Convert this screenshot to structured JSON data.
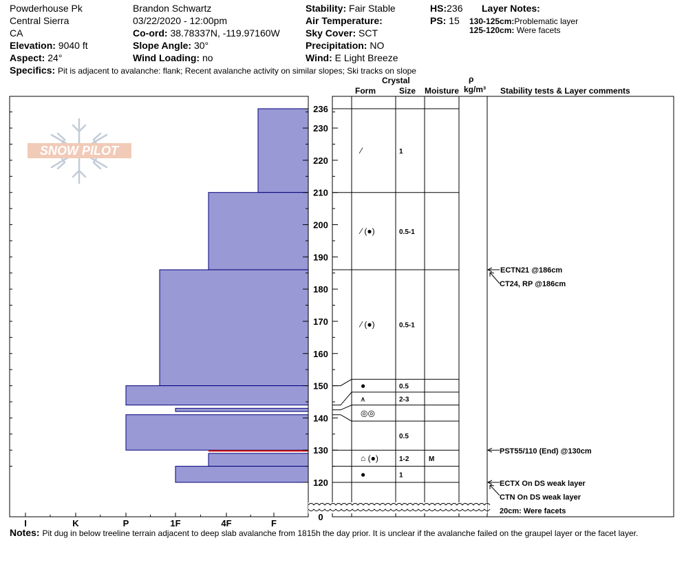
{
  "header": {
    "location": "Powderhouse Pk",
    "range": "Central Sierra",
    "state": "CA",
    "elevation_label": "Elevation:",
    "elevation_value": "9040 ft",
    "aspect_label": "Aspect:",
    "aspect_value": "24°",
    "observer": "Brandon Schwartz",
    "datetime": "03/22/2020 - 12:00pm",
    "coord_label": "Co-ord:",
    "coord_value": "38.78337N, -119.97160W",
    "slope_label": "Slope Angle:",
    "slope_value": "30°",
    "wind_loading_label": "Wind Loading:",
    "wind_loading_value": "no",
    "stability_label": "Stability:",
    "stability_value": "Fair Stable",
    "air_temp_label": "Air Temperature:",
    "air_temp_value": "",
    "sky_label": "Sky Cover:",
    "sky_value": "SCT",
    "precip_label": "Precipitation:",
    "precip_value": "NO",
    "wind_label": "Wind:",
    "wind_value": "E Light Breeze",
    "hs_label": "HS:",
    "hs_value": "236",
    "ps_label": "PS:",
    "ps_value": "15",
    "layer_notes_title": "Layer Notes:",
    "layer_notes": [
      {
        "range": "130-125cm:",
        "text": "Problematic layer"
      },
      {
        "range": "125-120cm:",
        "text": "Were facets"
      }
    ],
    "specifics_label": "Specifics:",
    "specifics_value": "Pit is adjacent to avalanche: flank;  Recent avalanche activity on similar slopes; Ski tracks on slope"
  },
  "columns": {
    "crystal": "Crystal",
    "form": "Form",
    "size": "Size",
    "moisture": "Moisture",
    "rho": "ρ",
    "density_unit": "kg/m³",
    "comments": "Stability tests & Layer comments"
  },
  "notes": {
    "label": "Notes:",
    "text": "Pit dug in below treeline terrain adjacent to deep slab avalanche from 1815h the day prior. It is unclear if the avalanche failed on the graupel layer or the facet layer."
  },
  "logo_text": "SNOW PILOT",
  "colors": {
    "hardness_fill": "#9999d6",
    "hardness_stroke": "#00007a",
    "problem_line": "#cc0000",
    "grid": "#000000"
  },
  "chart_data": {
    "type": "snow-profile",
    "y_axis": {
      "unit": "cm",
      "ticks": [
        0,
        120,
        130,
        140,
        150,
        160,
        170,
        180,
        190,
        200,
        210,
        220,
        230,
        236
      ],
      "range": [
        0,
        236
      ],
      "break_below": 115
    },
    "x_axis": {
      "ticks": [
        "I",
        "K",
        "P",
        "1F",
        "4F",
        "F"
      ]
    },
    "hardness_layers": [
      {
        "top": 236,
        "bottom": 210,
        "hardness": "F-"
      },
      {
        "top": 210,
        "bottom": 186,
        "hardness": "4F"
      },
      {
        "top": 186,
        "bottom": 150,
        "hardness": "1F+"
      },
      {
        "top": 150,
        "bottom": 144,
        "hardness": "P"
      },
      {
        "top": 143,
        "bottom": 142,
        "hardness": "1F"
      },
      {
        "top": 141,
        "bottom": 130,
        "hardness": "P"
      },
      {
        "top": 129,
        "bottom": 125,
        "hardness": "4F"
      },
      {
        "top": 125,
        "bottom": 120,
        "hardness": "1F"
      }
    ],
    "problem_layer_cm": 130,
    "crystal_layers": [
      {
        "top": 236,
        "bottom": 210,
        "form": "decomposing",
        "size": "1",
        "moisture": ""
      },
      {
        "top": 210,
        "bottom": 186,
        "form": "decomposing (rounds)",
        "size": "0.5-1",
        "moisture": ""
      },
      {
        "top": 186,
        "bottom": 152,
        "form": "decomposing (rounds)",
        "size": "0.5-1",
        "moisture": ""
      },
      {
        "top": 152,
        "bottom": 148,
        "form": "rounds",
        "size": "0.5",
        "moisture": ""
      },
      {
        "top": 148,
        "bottom": 144,
        "form": "depth hoar",
        "size": "2-3",
        "moisture": ""
      },
      {
        "top": 144,
        "bottom": 139,
        "form": "graupel",
        "size": "",
        "moisture": ""
      },
      {
        "top": 139,
        "bottom": 130,
        "form": "",
        "size": "0.5",
        "moisture": ""
      },
      {
        "top": 130,
        "bottom": 125,
        "form": "facets (rounds)",
        "size": "1-2",
        "moisture": "M"
      },
      {
        "top": 125,
        "bottom": 120,
        "form": "rounds",
        "size": "1",
        "moisture": ""
      }
    ],
    "tests": [
      {
        "text": "ECTN21 @186cm",
        "at_cm": 186
      },
      {
        "text": "CT24, RP @186cm",
        "at_cm": 186
      },
      {
        "text": "PST55/110 (End) @130cm",
        "at_cm": 130
      },
      {
        "text": "ECTX  On DS weak layer",
        "at_cm": 120
      },
      {
        "text": "CTN  On DS weak layer",
        "at_cm": 120
      },
      {
        "text": "20cm:  Were facets",
        "at_cm": 120
      }
    ]
  }
}
